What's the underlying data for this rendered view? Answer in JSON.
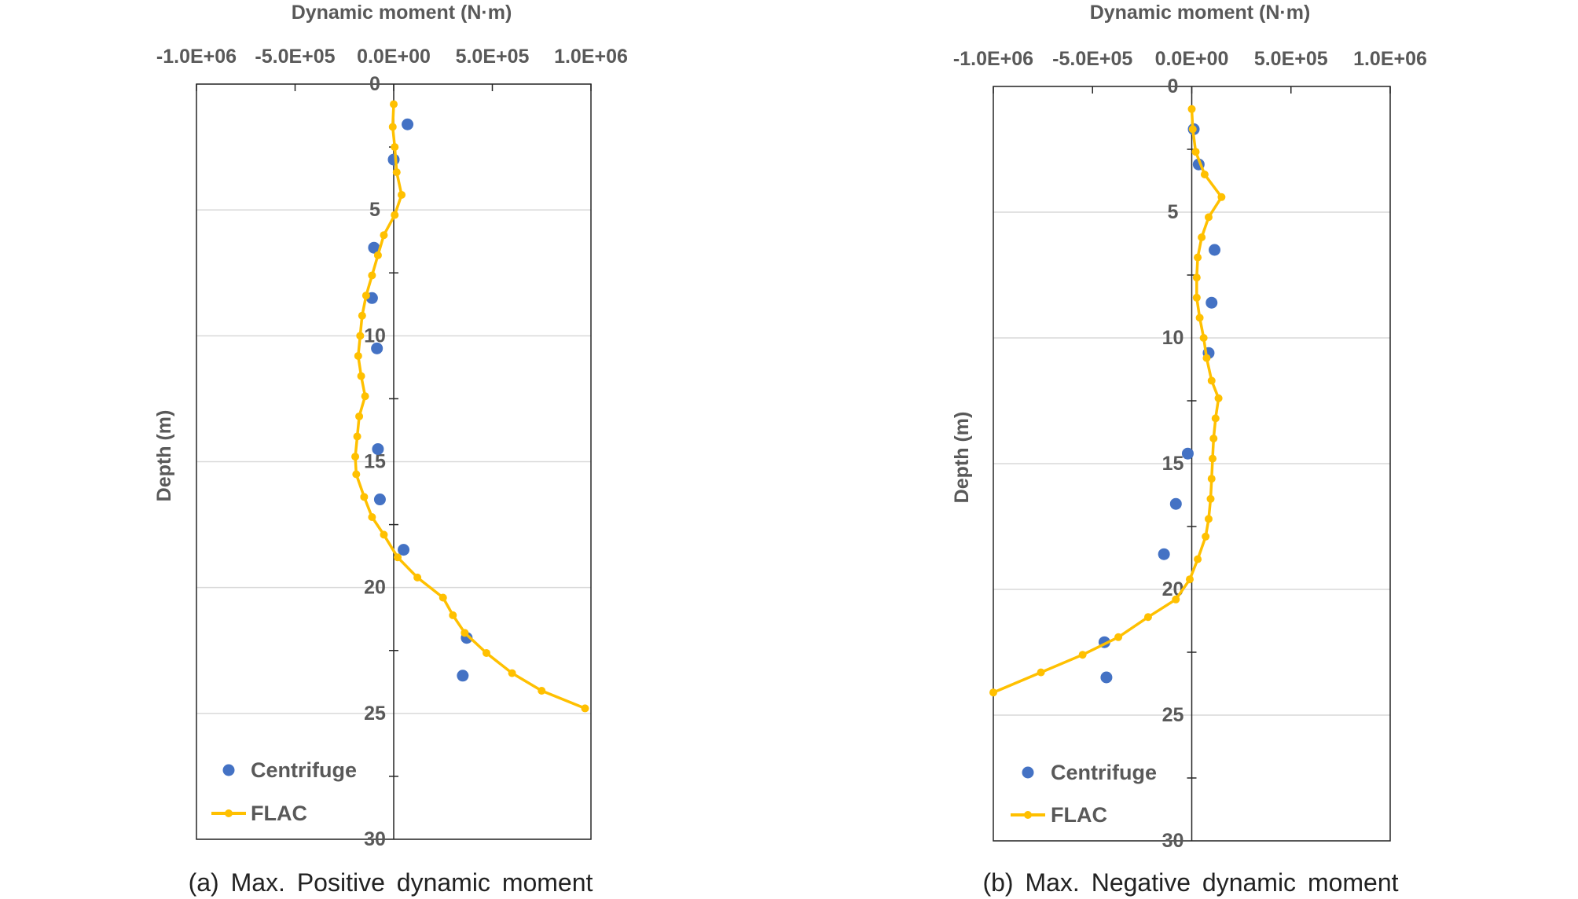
{
  "colors": {
    "centrifuge": "#4472C4",
    "flac": "#FFC000",
    "gridline": "#D9D9D9",
    "axis": "#262626",
    "text": "#595959"
  },
  "chart_data": [
    {
      "type": "scatter",
      "caption": "(a) Max. Positive dynamic moment",
      "xlabel": "Dynamic moment (N·m)",
      "ylabel": "Depth (m)",
      "xlim": [
        -1000000,
        1000000
      ],
      "ylim": [
        0,
        30
      ],
      "y_inverted": true,
      "x_axis_position": "top",
      "x_ticks": [
        -1000000,
        -500000,
        0,
        500000,
        1000000
      ],
      "x_tick_labels": [
        "-1.0E+06",
        "-5.0E+05",
        "0.0E+00",
        "5.0E+05",
        "1.0E+06"
      ],
      "y_ticks": [
        0,
        5,
        10,
        15,
        20,
        25,
        30
      ],
      "y_tick_labels": [
        "0",
        "5",
        "10",
        "15",
        "20",
        "25",
        "30"
      ],
      "grid": "horizontal",
      "legend_position": "bottom-left",
      "series": [
        {
          "name": "Centrifuge",
          "kind": "markers",
          "points": [
            [
              70000,
              1.6
            ],
            [
              0,
              3.0
            ],
            [
              -100000,
              6.5
            ],
            [
              -110000,
              8.5
            ],
            [
              -85000,
              10.5
            ],
            [
              -80000,
              14.5
            ],
            [
              -70000,
              16.5
            ],
            [
              50000,
              18.5
            ],
            [
              370000,
              22.0
            ],
            [
              350000,
              23.5
            ]
          ]
        },
        {
          "name": "FLAC",
          "kind": "line-markers",
          "points": [
            [
              0,
              0.8
            ],
            [
              -5000,
              1.7
            ],
            [
              5000,
              2.5
            ],
            [
              15000,
              3.5
            ],
            [
              40000,
              4.4
            ],
            [
              5000,
              5.2
            ],
            [
              -50000,
              6.0
            ],
            [
              -80000,
              6.8
            ],
            [
              -110000,
              7.6
            ],
            [
              -140000,
              8.4
            ],
            [
              -160000,
              9.2
            ],
            [
              -170000,
              10.0
            ],
            [
              -180000,
              10.8
            ],
            [
              -165000,
              11.6
            ],
            [
              -145000,
              12.4
            ],
            [
              -175000,
              13.2
            ],
            [
              -185000,
              14.0
            ],
            [
              -195000,
              14.8
            ],
            [
              -190000,
              15.5
            ],
            [
              -150000,
              16.4
            ],
            [
              -110000,
              17.2
            ],
            [
              -50000,
              17.9
            ],
            [
              20000,
              18.8
            ],
            [
              120000,
              19.6
            ],
            [
              250000,
              20.4
            ],
            [
              300000,
              21.1
            ],
            [
              360000,
              21.8
            ],
            [
              470000,
              22.6
            ],
            [
              600000,
              23.4
            ],
            [
              750000,
              24.1
            ],
            [
              970000,
              24.8
            ]
          ]
        }
      ]
    },
    {
      "type": "scatter",
      "caption": "(b) Max. Negative dynamic moment",
      "xlabel": "Dynamic moment (N·m)",
      "ylabel": "Depth (m)",
      "xlim": [
        -1000000,
        1000000
      ],
      "ylim": [
        0,
        30
      ],
      "y_inverted": true,
      "x_axis_position": "top",
      "x_ticks": [
        -1000000,
        -500000,
        0,
        500000,
        1000000
      ],
      "x_tick_labels": [
        "-1.0E+06",
        "-5.0E+05",
        "0.0E+00",
        "5.0E+05",
        "1.0E+06"
      ],
      "y_ticks": [
        0,
        5,
        10,
        15,
        20,
        25,
        30
      ],
      "y_tick_labels": [
        "0",
        "5",
        "10",
        "15",
        "20",
        "25",
        "30"
      ],
      "grid": "horizontal",
      "legend_position": "bottom-left",
      "series": [
        {
          "name": "Centrifuge",
          "kind": "markers",
          "points": [
            [
              10000,
              1.7
            ],
            [
              35000,
              3.1
            ],
            [
              115000,
              6.5
            ],
            [
              100000,
              8.6
            ],
            [
              85000,
              10.6
            ],
            [
              -20000,
              14.6
            ],
            [
              -80000,
              16.6
            ],
            [
              -140000,
              18.6
            ],
            [
              -440000,
              22.1
            ],
            [
              -430000,
              23.5
            ]
          ]
        },
        {
          "name": "FLAC",
          "kind": "line-markers",
          "points": [
            [
              0,
              0.9
            ],
            [
              5000,
              1.7
            ],
            [
              20000,
              2.6
            ],
            [
              65000,
              3.5
            ],
            [
              150000,
              4.4
            ],
            [
              85000,
              5.2
            ],
            [
              50000,
              6.0
            ],
            [
              30000,
              6.8
            ],
            [
              25000,
              7.6
            ],
            [
              25000,
              8.4
            ],
            [
              40000,
              9.2
            ],
            [
              60000,
              10.0
            ],
            [
              75000,
              10.8
            ],
            [
              100000,
              11.7
            ],
            [
              135000,
              12.4
            ],
            [
              120000,
              13.2
            ],
            [
              110000,
              14.0
            ],
            [
              105000,
              14.8
            ],
            [
              100000,
              15.6
            ],
            [
              95000,
              16.4
            ],
            [
              85000,
              17.2
            ],
            [
              70000,
              17.9
            ],
            [
              30000,
              18.8
            ],
            [
              -10000,
              19.6
            ],
            [
              -80000,
              20.4
            ],
            [
              -220000,
              21.1
            ],
            [
              -370000,
              21.9
            ],
            [
              -550000,
              22.6
            ],
            [
              -760000,
              23.3
            ],
            [
              -1000000,
              24.1
            ]
          ]
        }
      ]
    }
  ]
}
